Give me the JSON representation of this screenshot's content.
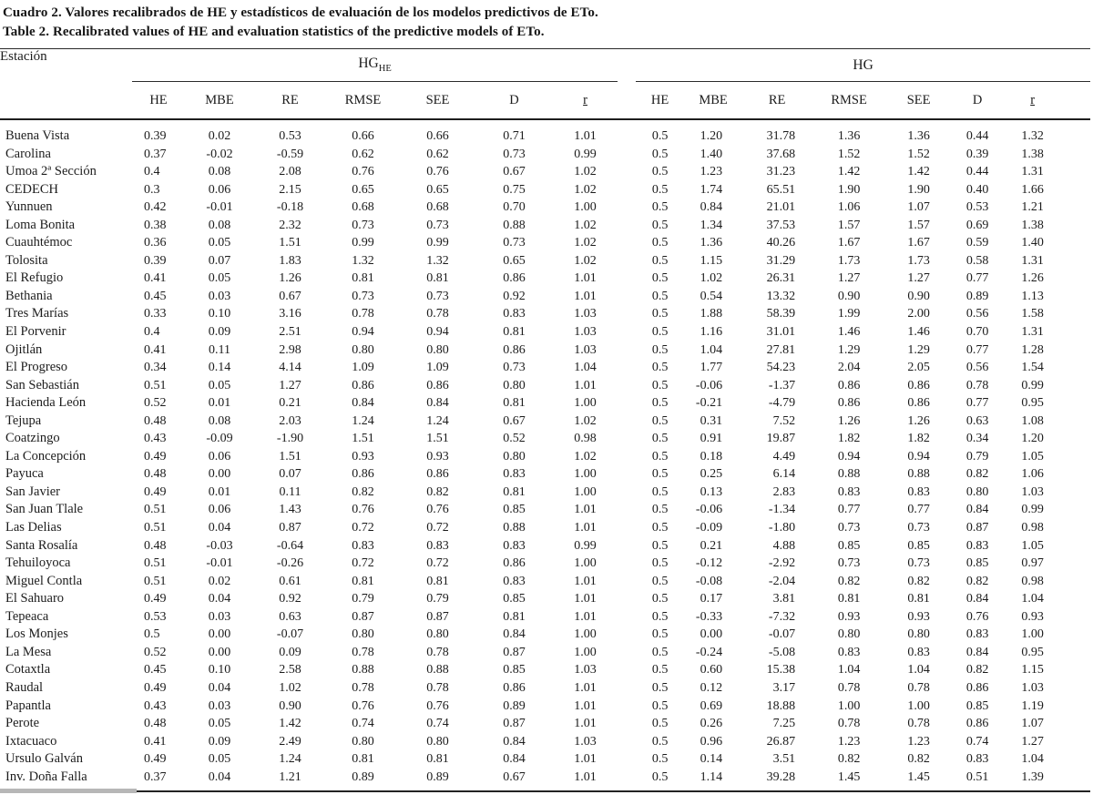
{
  "colors": {
    "ink": "#1c1c1c",
    "paper": "#ffffff"
  },
  "title_es": "Cuadro 2. Valores recalibrados de HE y estadísticos de evaluación de los modelos predictivos de ETo.",
  "title_en": "Table 2. Recalibrated values of HE and evaluation statistics of the predictive models of ETo.",
  "table": {
    "station_header": "Estación",
    "group1_base": "HG",
    "group1_sub": "HE",
    "group2_label": "HG",
    "sub_headers": [
      "HE",
      "MBE",
      "RE",
      "RMSE",
      "SEE",
      "D",
      "r"
    ],
    "rows": [
      {
        "station": "Buena Vista",
        "hghe": [
          "0.39",
          "0.02",
          "0.53",
          "0.66",
          "0.66",
          "0.71",
          "1.01"
        ],
        "hg": [
          "0.5",
          "1.20",
          "31.78",
          "1.36",
          "1.36",
          "0.44",
          "1.32"
        ]
      },
      {
        "station": "Carolina",
        "hghe": [
          "0.37",
          "-0.02",
          "-0.59",
          "0.62",
          "0.62",
          "0.73",
          "0.99"
        ],
        "hg": [
          "0.5",
          "1.40",
          "37.68",
          "1.52",
          "1.52",
          "0.39",
          "1.38"
        ]
      },
      {
        "station": "Umoa 2ª Sección",
        "hghe": [
          "0.4",
          "0.08",
          "2.08",
          "0.76",
          "0.76",
          "0.67",
          "1.02"
        ],
        "hg": [
          "0.5",
          "1.23",
          "31.23",
          "1.42",
          "1.42",
          "0.44",
          "1.31"
        ]
      },
      {
        "station": "CEDECH",
        "hghe": [
          "0.3",
          "0.06",
          "2.15",
          "0.65",
          "0.65",
          "0.75",
          "1.02"
        ],
        "hg": [
          "0.5",
          "1.74",
          "65.51",
          "1.90",
          "1.90",
          "0.40",
          "1.66"
        ]
      },
      {
        "station": "Yunnuen",
        "hghe": [
          "0.42",
          "-0.01",
          "-0.18",
          "0.68",
          "0.68",
          "0.70",
          "1.00"
        ],
        "hg": [
          "0.5",
          "0.84",
          "21.01",
          "1.06",
          "1.07",
          "0.53",
          "1.21"
        ]
      },
      {
        "station": "Loma Bonita",
        "hghe": [
          "0.38",
          "0.08",
          "2.32",
          "0.73",
          "0.73",
          "0.88",
          "1.02"
        ],
        "hg": [
          "0.5",
          "1.34",
          "37.53",
          "1.57",
          "1.57",
          "0.69",
          "1.38"
        ]
      },
      {
        "station": "Cuauhtémoc",
        "hghe": [
          "0.36",
          "0.05",
          "1.51",
          "0.99",
          "0.99",
          "0.73",
          "1.02"
        ],
        "hg": [
          "0.5",
          "1.36",
          "40.26",
          "1.67",
          "1.67",
          "0.59",
          "1.40"
        ]
      },
      {
        "station": "Tolosita",
        "hghe": [
          "0.39",
          "0.07",
          "1.83",
          "1.32",
          "1.32",
          "0.65",
          "1.02"
        ],
        "hg": [
          "0.5",
          "1.15",
          "31.29",
          "1.73",
          "1.73",
          "0.58",
          "1.31"
        ]
      },
      {
        "station": "El Refugio",
        "hghe": [
          "0.41",
          "0.05",
          "1.26",
          "0.81",
          "0.81",
          "0.86",
          "1.01"
        ],
        "hg": [
          "0.5",
          "1.02",
          "26.31",
          "1.27",
          "1.27",
          "0.77",
          "1.26"
        ]
      },
      {
        "station": "Bethania",
        "hghe": [
          "0.45",
          "0.03",
          "0.67",
          "0.73",
          "0.73",
          "0.92",
          "1.01"
        ],
        "hg": [
          "0.5",
          "0.54",
          "13.32",
          "0.90",
          "0.90",
          "0.89",
          "1.13"
        ]
      },
      {
        "station": "Tres Marías",
        "hghe": [
          "0.33",
          "0.10",
          "3.16",
          "0.78",
          "0.78",
          "0.83",
          "1.03"
        ],
        "hg": [
          "0.5",
          "1.88",
          "58.39",
          "1.99",
          "2.00",
          "0.56",
          "1.58"
        ]
      },
      {
        "station": "El Porvenir",
        "hghe": [
          "0.4",
          "0.09",
          "2.51",
          "0.94",
          "0.94",
          "0.81",
          "1.03"
        ],
        "hg": [
          "0.5",
          "1.16",
          "31.01",
          "1.46",
          "1.46",
          "0.70",
          "1.31"
        ]
      },
      {
        "station": "Ojitlán",
        "hghe": [
          "0.41",
          "0.11",
          "2.98",
          "0.80",
          "0.80",
          "0.86",
          "1.03"
        ],
        "hg": [
          "0.5",
          "1.04",
          "27.81",
          "1.29",
          "1.29",
          "0.77",
          "1.28"
        ]
      },
      {
        "station": "El Progreso",
        "hghe": [
          "0.34",
          "0.14",
          "4.14",
          "1.09",
          "1.09",
          "0.73",
          "1.04"
        ],
        "hg": [
          "0.5",
          "1.77",
          "54.23",
          "2.04",
          "2.05",
          "0.56",
          "1.54"
        ]
      },
      {
        "station": "San Sebastián",
        "hghe": [
          "0.51",
          "0.05",
          "1.27",
          "0.86",
          "0.86",
          "0.80",
          "1.01"
        ],
        "hg": [
          "0.5",
          "-0.06",
          "-1.37",
          "0.86",
          "0.86",
          "0.78",
          "0.99"
        ]
      },
      {
        "station": "Hacienda León",
        "hghe": [
          "0.52",
          "0.01",
          "0.21",
          "0.84",
          "0.84",
          "0.81",
          "1.00"
        ],
        "hg": [
          "0.5",
          "-0.21",
          "-4.79",
          "0.86",
          "0.86",
          "0.77",
          "0.95"
        ]
      },
      {
        "station": "Tejupa",
        "hghe": [
          "0.48",
          "0.08",
          "2.03",
          "1.24",
          "1.24",
          "0.67",
          "1.02"
        ],
        "hg": [
          "0.5",
          "0.31",
          "7.52",
          "1.26",
          "1.26",
          "0.63",
          "1.08"
        ]
      },
      {
        "station": "Coatzingo",
        "hghe": [
          "0.43",
          "-0.09",
          "-1.90",
          "1.51",
          "1.51",
          "0.52",
          "0.98"
        ],
        "hg": [
          "0.5",
          "0.91",
          "19.87",
          "1.82",
          "1.82",
          "0.34",
          "1.20"
        ]
      },
      {
        "station": "La Concepción",
        "hghe": [
          "0.49",
          "0.06",
          "1.51",
          "0.93",
          "0.93",
          "0.80",
          "1.02"
        ],
        "hg": [
          "0.5",
          "0.18",
          "4.49",
          "0.94",
          "0.94",
          "0.79",
          "1.05"
        ]
      },
      {
        "station": "Payuca",
        "hghe": [
          "0.48",
          "0.00",
          "0.07",
          "0.86",
          "0.86",
          "0.83",
          "1.00"
        ],
        "hg": [
          "0.5",
          "0.25",
          "6.14",
          "0.88",
          "0.88",
          "0.82",
          "1.06"
        ]
      },
      {
        "station": "San Javier",
        "hghe": [
          "0.49",
          "0.01",
          "0.11",
          "0.82",
          "0.82",
          "0.81",
          "1.00"
        ],
        "hg": [
          "0.5",
          "0.13",
          "2.83",
          "0.83",
          "0.83",
          "0.80",
          "1.03"
        ]
      },
      {
        "station": "San Juan Tlale",
        "hghe": [
          "0.51",
          "0.06",
          "1.43",
          "0.76",
          "0.76",
          "0.85",
          "1.01"
        ],
        "hg": [
          "0.5",
          "-0.06",
          "-1.34",
          "0.77",
          "0.77",
          "0.84",
          "0.99"
        ]
      },
      {
        "station": "Las Delias",
        "hghe": [
          "0.51",
          "0.04",
          "0.87",
          "0.72",
          "0.72",
          "0.88",
          "1.01"
        ],
        "hg": [
          "0.5",
          "-0.09",
          "-1.80",
          "0.73",
          "0.73",
          "0.87",
          "0.98"
        ]
      },
      {
        "station": "Santa Rosalía",
        "hghe": [
          "0.48",
          "-0.03",
          "-0.64",
          "0.83",
          "0.83",
          "0.83",
          "0.99"
        ],
        "hg": [
          "0.5",
          "0.21",
          "4.88",
          "0.85",
          "0.85",
          "0.83",
          "1.05"
        ]
      },
      {
        "station": "Tehuiloyoca",
        "hghe": [
          "0.51",
          "-0.01",
          "-0.26",
          "0.72",
          "0.72",
          "0.86",
          "1.00"
        ],
        "hg": [
          "0.5",
          "-0.12",
          "-2.92",
          "0.73",
          "0.73",
          "0.85",
          "0.97"
        ]
      },
      {
        "station": "Miguel Contla",
        "hghe": [
          "0.51",
          "0.02",
          "0.61",
          "0.81",
          "0.81",
          "0.83",
          "1.01"
        ],
        "hg": [
          "0.5",
          "-0.08",
          "-2.04",
          "0.82",
          "0.82",
          "0.82",
          "0.98"
        ]
      },
      {
        "station": "El Sahuaro",
        "hghe": [
          "0.49",
          "0.04",
          "0.92",
          "0.79",
          "0.79",
          "0.85",
          "1.01"
        ],
        "hg": [
          "0.5",
          "0.17",
          "3.81",
          "0.81",
          "0.81",
          "0.84",
          "1.04"
        ]
      },
      {
        "station": "Tepeaca",
        "hghe": [
          "0.53",
          "0.03",
          "0.63",
          "0.87",
          "0.87",
          "0.81",
          "1.01"
        ],
        "hg": [
          "0.5",
          "-0.33",
          "-7.32",
          "0.93",
          "0.93",
          "0.76",
          "0.93"
        ]
      },
      {
        "station": "Los Monjes",
        "hghe": [
          "0.5",
          "0.00",
          "-0.07",
          "0.80",
          "0.80",
          "0.84",
          "1.00"
        ],
        "hg": [
          "0.5",
          "0.00",
          "-0.07",
          "0.80",
          "0.80",
          "0.83",
          "1.00"
        ]
      },
      {
        "station": "La Mesa",
        "hghe": [
          "0.52",
          "0.00",
          "0.09",
          "0.78",
          "0.78",
          "0.87",
          "1.00"
        ],
        "hg": [
          "0.5",
          "-0.24",
          "-5.08",
          "0.83",
          "0.83",
          "0.84",
          "0.95"
        ]
      },
      {
        "station": "Cotaxtla",
        "hghe": [
          "0.45",
          "0.10",
          "2.58",
          "0.88",
          "0.88",
          "0.85",
          "1.03"
        ],
        "hg": [
          "0.5",
          "0.60",
          "15.38",
          "1.04",
          "1.04",
          "0.82",
          "1.15"
        ]
      },
      {
        "station": "Raudal",
        "hghe": [
          "0.49",
          "0.04",
          "1.02",
          "0.78",
          "0.78",
          "0.86",
          "1.01"
        ],
        "hg": [
          "0.5",
          "0.12",
          "3.17",
          "0.78",
          "0.78",
          "0.86",
          "1.03"
        ]
      },
      {
        "station": "Papantla",
        "hghe": [
          "0.43",
          "0.03",
          "0.90",
          "0.76",
          "0.76",
          "0.89",
          "1.01"
        ],
        "hg": [
          "0.5",
          "0.69",
          "18.88",
          "1.00",
          "1.00",
          "0.85",
          "1.19"
        ]
      },
      {
        "station": "Perote",
        "hghe": [
          "0.48",
          "0.05",
          "1.42",
          "0.74",
          "0.74",
          "0.87",
          "1.01"
        ],
        "hg": [
          "0.5",
          "0.26",
          "7.25",
          "0.78",
          "0.78",
          "0.86",
          "1.07"
        ]
      },
      {
        "station": "Ixtacuaco",
        "hghe": [
          "0.41",
          "0.09",
          "2.49",
          "0.80",
          "0.80",
          "0.84",
          "1.03"
        ],
        "hg": [
          "0.5",
          "0.96",
          "26.87",
          "1.23",
          "1.23",
          "0.74",
          "1.27"
        ]
      },
      {
        "station": "Ursulo Galván",
        "hghe": [
          "0.49",
          "0.05",
          "1.24",
          "0.81",
          "0.81",
          "0.84",
          "1.01"
        ],
        "hg": [
          "0.5",
          "0.14",
          "3.51",
          "0.82",
          "0.82",
          "0.83",
          "1.04"
        ]
      },
      {
        "station": "Inv. Doña Falla",
        "hghe": [
          "0.37",
          "0.04",
          "1.21",
          "0.89",
          "0.89",
          "0.67",
          "1.01"
        ],
        "hg": [
          "0.5",
          "1.14",
          "39.28",
          "1.45",
          "1.45",
          "0.51",
          "1.39"
        ]
      }
    ]
  }
}
